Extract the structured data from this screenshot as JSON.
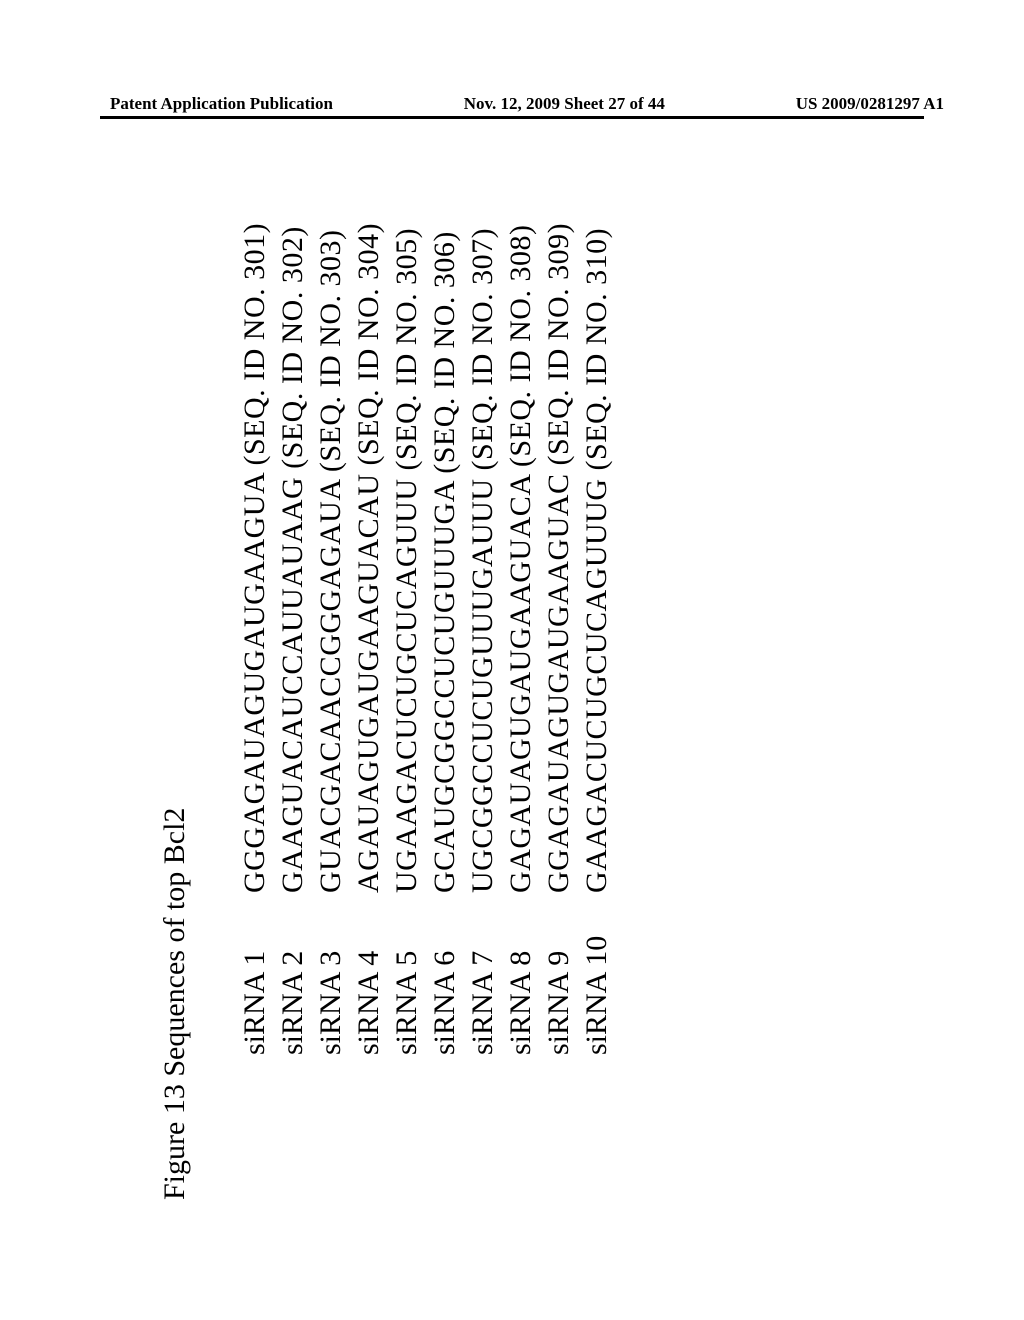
{
  "header": {
    "left": "Patent Application Publication",
    "center": "Nov. 12, 2009  Sheet 27 of 44",
    "right": "US 2009/0281297 A1"
  },
  "figure": {
    "title": "Figure 13 Sequences of top Bcl2"
  },
  "sequences": {
    "items": [
      {
        "label": "siRNA 1",
        "seq": "GGGAGAUAGUGAUGAAGUA (SEQ. ID NO. 301)"
      },
      {
        "label": "siRNA 2",
        "seq": "GAAGUACAUCCAUUAUAAG (SEQ. ID NO. 302)"
      },
      {
        "label": "siRNA 3",
        "seq": "GUACGACAACCGGGAGAUA (SEQ. ID NO. 303)"
      },
      {
        "label": "siRNA 4",
        "seq": "AGAUAGUGAUGAAGUACAU (SEQ. ID NO. 304)"
      },
      {
        "label": "siRNA 5",
        "seq": "UGAAGACUCUGCUCAGUUU (SEQ. ID NO. 305)"
      },
      {
        "label": "siRNA 6",
        "seq": "GCAUGCGGCCUCUGUUUGA (SEQ. ID NO. 306)"
      },
      {
        "label": "siRNA 7",
        "seq": "UGCGGCCUCUGUUUGAUUU (SEQ. ID NO. 307)"
      },
      {
        "label": "siRNA 8",
        "seq": "GAGAUAGUGAUGAAGUACA (SEQ. ID NO. 308)"
      },
      {
        "label": "siRNA 9",
        "seq": "GGAGAUAGUGAUGAAGUAC (SEQ. ID NO. 309)"
      },
      {
        "label": "siRNA 10",
        "seq": "GAAGACUCUGCUCAGUUUG (SEQ. ID NO. 310)"
      }
    ]
  },
  "styles": {
    "page_bg": "#ffffff",
    "text_color": "#000000",
    "header_fontsize": 17,
    "body_fontsize": 30,
    "divider_color": "#000000"
  }
}
